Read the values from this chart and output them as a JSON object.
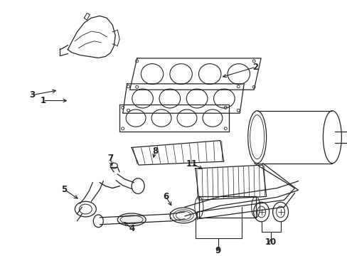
{
  "background_color": "#ffffff",
  "fig_width": 4.89,
  "fig_height": 3.6,
  "dpi": 100,
  "draw_color": "#222222"
}
